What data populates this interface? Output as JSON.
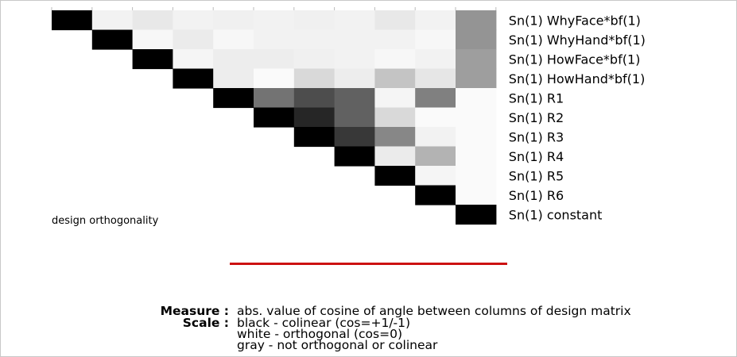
{
  "chart_data": {
    "type": "heatmap",
    "measure": "cosine_abs",
    "row_labels": [
      "Sn(1) WhyFace*bf(1)",
      "Sn(1) WhyHand*bf(1)",
      "Sn(1) HowFace*bf(1)",
      "Sn(1) HowHand*bf(1)",
      "Sn(1) R1",
      "Sn(1) R2",
      "Sn(1) R3",
      "Sn(1) R4",
      "Sn(1) R5",
      "Sn(1) R6",
      "Sn(1) constant"
    ],
    "matrix": [
      [
        1.0,
        0.05,
        0.09,
        0.05,
        0.06,
        0.05,
        0.06,
        0.05,
        0.09,
        0.05,
        0.42
      ],
      [
        null,
        1.0,
        0.03,
        0.08,
        0.03,
        0.05,
        0.05,
        0.05,
        0.05,
        0.03,
        0.42
      ],
      [
        null,
        null,
        1.0,
        0.04,
        0.07,
        0.07,
        0.06,
        0.05,
        0.03,
        0.05,
        0.38
      ],
      [
        null,
        null,
        null,
        1.0,
        0.07,
        0.02,
        0.15,
        0.07,
        0.23,
        0.1,
        0.38
      ],
      [
        null,
        null,
        null,
        null,
        1.0,
        0.55,
        0.7,
        0.62,
        0.04,
        0.5,
        0.02
      ],
      [
        null,
        null,
        null,
        null,
        null,
        1.0,
        0.85,
        0.62,
        0.15,
        0.02,
        0.02
      ],
      [
        null,
        null,
        null,
        null,
        null,
        null,
        1.0,
        0.78,
        0.47,
        0.05,
        0.02
      ],
      [
        null,
        null,
        null,
        null,
        null,
        null,
        null,
        1.0,
        0.08,
        0.3,
        0.02
      ],
      [
        null,
        null,
        null,
        null,
        null,
        null,
        null,
        null,
        1.0,
        0.04,
        0.02
      ],
      [
        null,
        null,
        null,
        null,
        null,
        null,
        null,
        null,
        null,
        1.0,
        0.02
      ],
      [
        null,
        null,
        null,
        null,
        null,
        null,
        null,
        null,
        null,
        null,
        1.0
      ]
    ],
    "grid": false
  },
  "caption": "design orthogonality",
  "legend": {
    "measure_key": "Measure :",
    "measure_text": "abs. value of cosine of angle between columns of design matrix",
    "scale_key": "Scale :",
    "scale_lines": [
      "black - colinear (cos=+1/-1)",
      "white - orthogonal (cos=0)",
      "gray  - not orthogonal or colinear"
    ]
  },
  "colors": {
    "divider": "#cc1111",
    "border": "#c8c8c8"
  }
}
